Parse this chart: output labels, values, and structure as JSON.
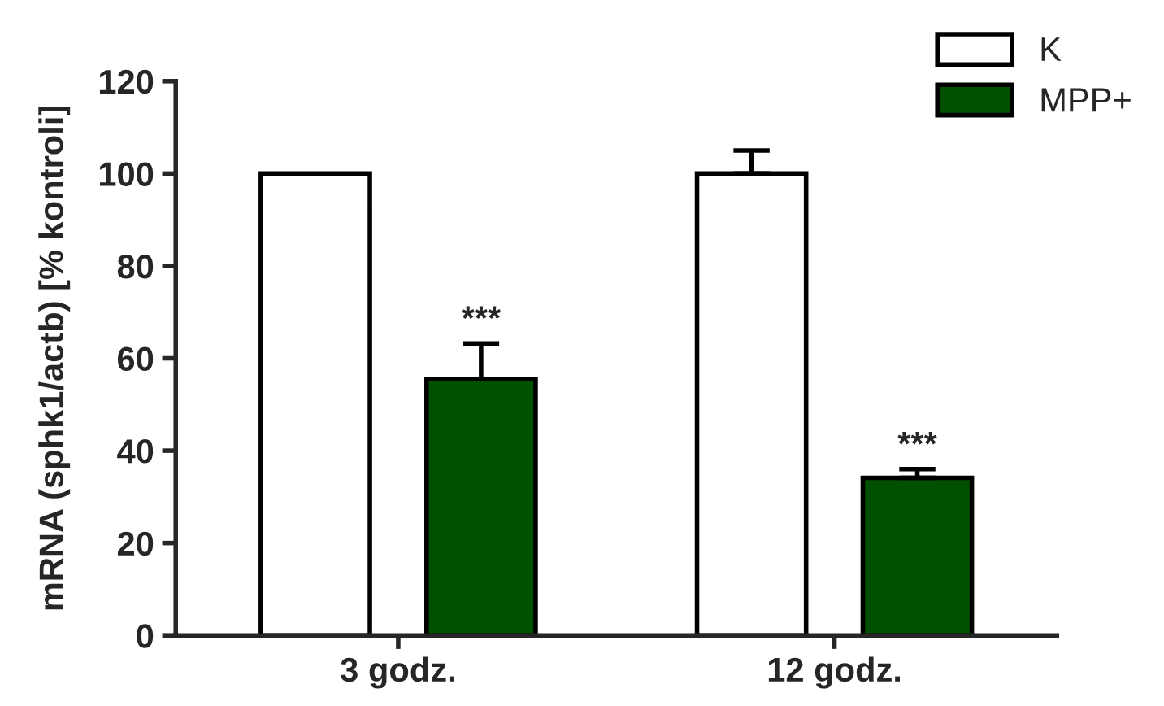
{
  "chart_data": {
    "type": "bar",
    "ylabel": "mRNA (sphk1/actb) [% kontroli]",
    "categories": [
      "3 godz.",
      "12 godz."
    ],
    "series": [
      {
        "name": "K",
        "color": "#ffffff",
        "values": [
          100,
          100
        ],
        "errors": [
          null,
          5
        ]
      },
      {
        "name": "MPP+",
        "color": "#005000",
        "values": [
          55.5,
          34.1
        ],
        "errors": [
          7.7,
          1.9
        ]
      }
    ],
    "annotations": [
      "***",
      "***"
    ],
    "ylim": [
      0,
      120
    ],
    "yticks": [
      0,
      20,
      40,
      60,
      80,
      100,
      120
    ],
    "grid": false,
    "legend": "top right"
  }
}
